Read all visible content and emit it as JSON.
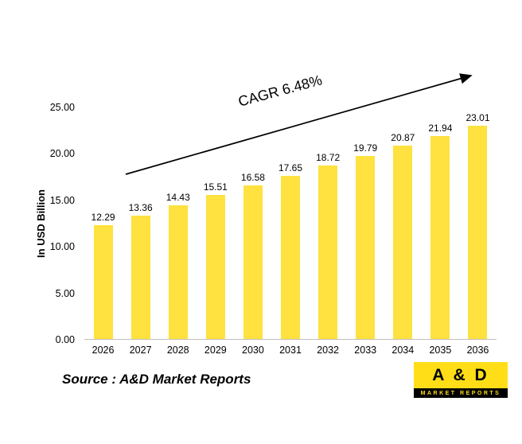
{
  "chart_data": {
    "type": "bar",
    "categories": [
      "2026",
      "2027",
      "2028",
      "2029",
      "2030",
      "2031",
      "2032",
      "2033",
      "2034",
      "2035",
      "2036"
    ],
    "values": [
      12.29,
      13.36,
      14.43,
      15.51,
      16.58,
      17.65,
      18.72,
      19.79,
      20.87,
      21.94,
      23.01
    ],
    "value_labels": [
      "12.29",
      "13.36",
      "14.43",
      "15.51",
      "16.58",
      "17.65",
      "18.72",
      "19.79",
      "20.87",
      "21.94",
      "23.01"
    ],
    "title": "",
    "xlabel": "",
    "ylabel": "In USD Billion",
    "ylim": [
      0,
      25
    ],
    "ytick_labels": [
      "0.00",
      "5.00",
      "10.00",
      "15.00",
      "20.00",
      "25.00"
    ],
    "bar_color": "#FFE13F",
    "axis_line_color": "#BFBFBF",
    "annotation": "CAGR 6.48%",
    "grid": false,
    "legend": false
  },
  "footer": {
    "source": "Source : A&D Market Reports"
  },
  "logo": {
    "title": "A & D",
    "subtitle": "MARKET REPORTS",
    "bg_color": "#FFDE17",
    "text_color": "#000000"
  }
}
